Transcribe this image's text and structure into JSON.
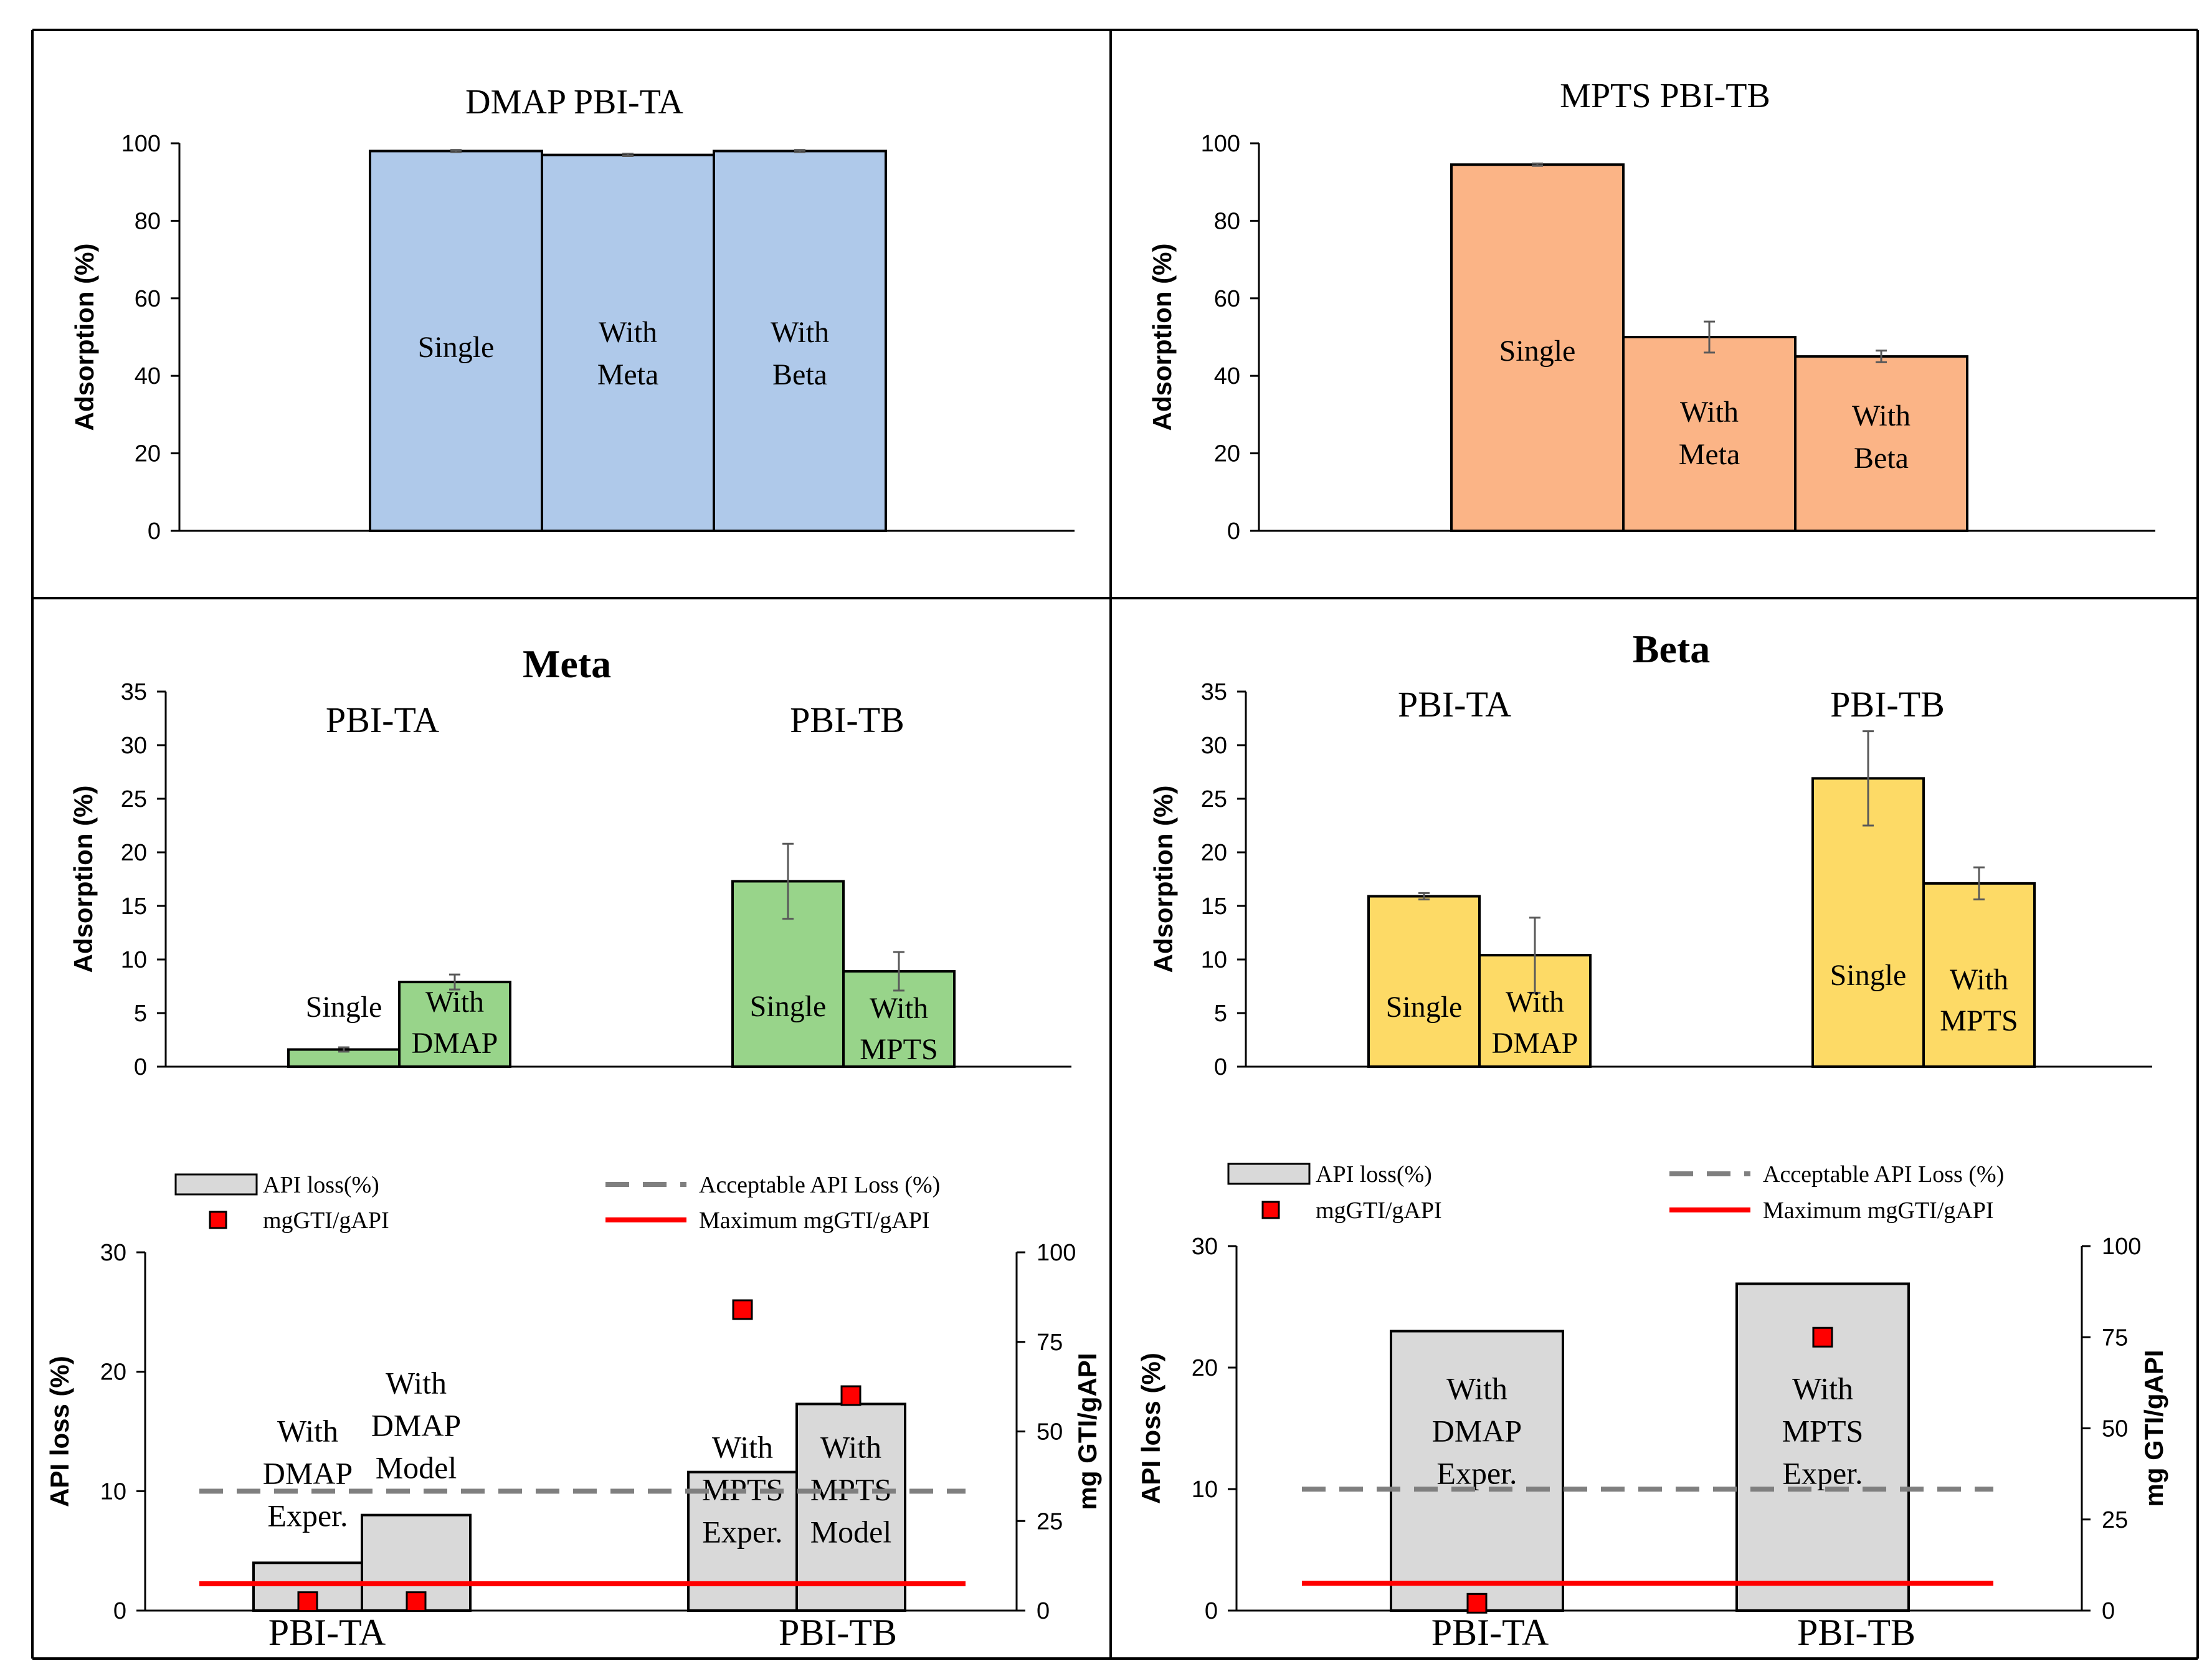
{
  "chart_data": [
    {
      "id": "dmap_pbi_ta",
      "type": "bar",
      "title": "DMAP PBI-TA",
      "ylabel": "Adsorption  (%)",
      "ylim": [
        0,
        100
      ],
      "yticks": [
        0,
        20,
        40,
        60,
        80,
        100
      ],
      "color": "#AFC9EA",
      "bars": [
        {
          "label": [
            "Single"
          ],
          "value": 98.0,
          "error": 0.3
        },
        {
          "label": [
            "With",
            "Meta"
          ],
          "value": 97.0,
          "error": 0.3
        },
        {
          "label": [
            "With",
            "Beta"
          ],
          "value": 98.0,
          "error": 0.3
        }
      ]
    },
    {
      "id": "mpts_pbi_tb",
      "type": "bar",
      "title": "MPTS PBI-TB",
      "ylabel": "Adsorption  (%)",
      "ylim": [
        0,
        100
      ],
      "yticks": [
        0,
        20,
        40,
        60,
        80,
        100
      ],
      "color": "#FBB486",
      "bars": [
        {
          "label": [
            "Single"
          ],
          "value": 94.5,
          "error": 0.3
        },
        {
          "label": [
            "With",
            "Meta"
          ],
          "value": 50.0,
          "error": 4.0
        },
        {
          "label": [
            "With",
            "Beta"
          ],
          "value": 45.0,
          "error": 1.5
        }
      ]
    },
    {
      "id": "meta",
      "type": "bar",
      "title": "Meta",
      "ylabel": "Adsorption  (%)",
      "ylim": [
        0,
        35
      ],
      "yticks": [
        0,
        5,
        10,
        15,
        20,
        25,
        30,
        35
      ],
      "color": "#98D48A",
      "groups": [
        {
          "name": "PBI-TA",
          "bars": [
            {
              "label": [
                "Single"
              ],
              "value": 1.6,
              "error": 0.2,
              "label_above": true
            },
            {
              "label": [
                "With",
                "DMAP"
              ],
              "value": 7.9,
              "error": 0.7
            }
          ]
        },
        {
          "name": "PBI-TB",
          "bars": [
            {
              "label": [
                "Single"
              ],
              "value": 17.3,
              "error": 3.5
            },
            {
              "label": [
                "With",
                "MPTS"
              ],
              "value": 8.9,
              "error": 1.8
            }
          ]
        }
      ]
    },
    {
      "id": "beta",
      "type": "bar",
      "title": "Beta",
      "ylabel": "Adsorption  (%)",
      "ylim": [
        0,
        35
      ],
      "yticks": [
        0,
        5,
        10,
        15,
        20,
        25,
        30,
        35
      ],
      "color": "#FDDA66",
      "groups": [
        {
          "name": "PBI-TA",
          "bars": [
            {
              "label": [
                "Single"
              ],
              "value": 15.9,
              "error": 0.3
            },
            {
              "label": [
                "With",
                "DMAP"
              ],
              "value": 10.4,
              "error": 3.5
            }
          ]
        },
        {
          "name": "PBI-TB",
          "bars": [
            {
              "label": [
                "Single"
              ],
              "value": 26.9,
              "error": 4.4
            },
            {
              "label": [
                "With",
                "MPTS"
              ],
              "value": 17.1,
              "error": 1.5
            }
          ]
        }
      ]
    },
    {
      "id": "api_loss_meta",
      "type": "bar",
      "ylabel": "API loss (%)",
      "ylabel_right": "mg GTI/gAPI",
      "ylim": [
        0,
        30
      ],
      "yticks": [
        0,
        10,
        20,
        30
      ],
      "ylim_right": [
        0,
        100
      ],
      "yticks_right": [
        0,
        25,
        50,
        75,
        100
      ],
      "acceptable_api_loss": 10,
      "maximum_mggti_gapi": 7.5,
      "legend": {
        "bar": "API loss(%)",
        "dash": "Acceptable API Loss (%)",
        "marker": "mgGTI/gAPI",
        "line": "Maximum mgGTI/gAPI"
      },
      "groups": [
        {
          "name": "PBI-TA",
          "bars": [
            {
              "label": [
                "With",
                "DMAP",
                "Exper."
              ],
              "value": 4.0,
              "mg": 2.5
            },
            {
              "label": [
                "With",
                "DMAP",
                "Model"
              ],
              "value": 8.0,
              "mg": 2.5
            }
          ]
        },
        {
          "name": "PBI-TB",
          "bars": [
            {
              "label": [
                "With",
                "MPTS",
                "Exper."
              ],
              "value": 11.6,
              "mg": 84
            },
            {
              "label": [
                "With",
                "MPTS",
                "Model"
              ],
              "value": 17.3,
              "mg": 60
            }
          ]
        }
      ]
    },
    {
      "id": "api_loss_beta",
      "type": "bar",
      "ylabel": "API loss (%)",
      "ylabel_right": "mg GTI/gAPI",
      "ylim": [
        0,
        30
      ],
      "yticks": [
        0,
        10,
        20,
        30
      ],
      "ylim_right": [
        0,
        100
      ],
      "yticks_right": [
        0,
        25,
        50,
        75,
        100
      ],
      "acceptable_api_loss": 10,
      "maximum_mggti_gapi": 7.5,
      "legend": {
        "bar": "API loss(%)",
        "dash": "Acceptable API Loss (%)",
        "marker": "mgGTI/gAPI",
        "line": "Maximum mgGTI/gAPI"
      },
      "groups": [
        {
          "name": "PBI-TA",
          "bars": [
            {
              "label": [
                "With",
                "DMAP",
                "Exper."
              ],
              "value": 23.0,
              "mg": 2
            }
          ]
        },
        {
          "name": "PBI-TB",
          "bars": [
            {
              "label": [
                "With",
                "MPTS",
                "Exper."
              ],
              "value": 26.9,
              "mg": 75
            }
          ]
        }
      ]
    }
  ]
}
